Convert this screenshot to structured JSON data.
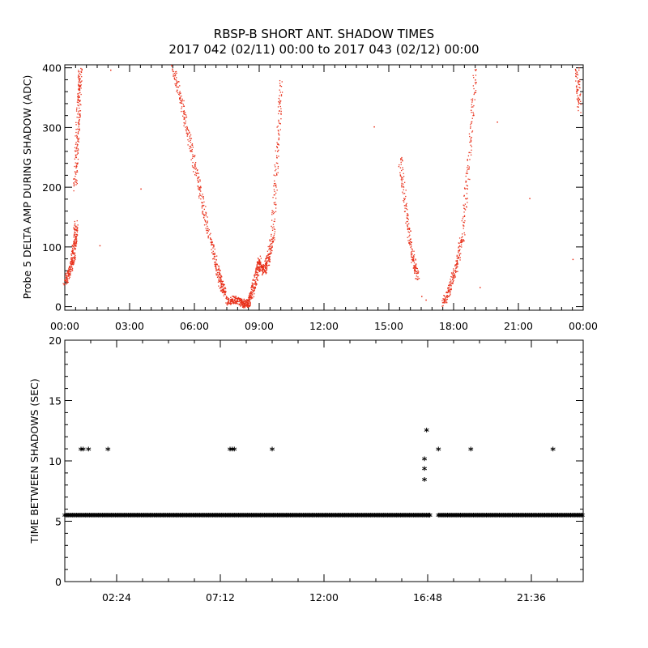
{
  "title_line1": "RBSP-B SHORT ANT. SHADOW TIMES",
  "title_line2": "2017 042 (02/11) 00:00 to 2017 043 (02/12) 00:00",
  "chart_data": [
    {
      "type": "scatter",
      "ylabel": "Probe 5 DELTA AMP DURING SHADOW (ADC)",
      "xlabel": "",
      "x_unit": "hours",
      "xlim": [
        0,
        24
      ],
      "ylim": [
        -6,
        405
      ],
      "xticks": [
        0,
        3,
        6,
        9,
        12,
        15,
        18,
        21,
        24
      ],
      "xtick_labels": [
        "00:00",
        "03:00",
        "06:00",
        "09:00",
        "12:00",
        "15:00",
        "18:00",
        "21:00",
        "00:00"
      ],
      "yticks": [
        0,
        100,
        200,
        300,
        400
      ],
      "ytick_labels": [
        "0",
        "100",
        "200",
        "300",
        "400"
      ],
      "color": "#e8301a",
      "segments": [
        {
          "x": [
            0.0,
            0.2,
            0.35,
            0.45,
            0.5
          ],
          "y": [
            40,
            60,
            80,
            110,
            140
          ]
        },
        {
          "x": [
            0.45,
            0.55,
            0.65,
            0.7
          ],
          "y": [
            200,
            280,
            350,
            400
          ]
        },
        {
          "x": [
            5.0,
            5.4,
            5.8,
            6.2,
            6.6,
            7.0,
            7.2,
            7.4
          ],
          "y": [
            400,
            340,
            270,
            200,
            130,
            70,
            40,
            20
          ]
        },
        {
          "x": [
            7.5,
            7.8,
            8.1,
            8.3,
            8.5,
            8.7,
            8.9,
            9.0
          ],
          "y": [
            10,
            12,
            9,
            5,
            8,
            30,
            60,
            80
          ]
        },
        {
          "x": [
            9.0,
            9.2,
            9.4,
            9.6,
            9.8,
            10.0
          ],
          "y": [
            70,
            60,
            80,
            120,
            250,
            380
          ]
        },
        {
          "x": [
            15.5,
            15.8,
            16.1,
            16.3
          ],
          "y": [
            250,
            150,
            80,
            50
          ]
        },
        {
          "x": [
            17.5,
            17.8,
            18.1,
            18.4,
            18.7,
            19.0
          ],
          "y": [
            5,
            30,
            70,
            120,
            250,
            400
          ]
        },
        {
          "x": [
            23.7,
            23.8
          ],
          "y": [
            400,
            330
          ]
        }
      ],
      "isolated_points": [
        {
          "x": 1.6,
          "y": 103
        },
        {
          "x": 3.5,
          "y": 198
        },
        {
          "x": 2.1,
          "y": 397
        },
        {
          "x": 14.3,
          "y": 302
        },
        {
          "x": 16.5,
          "y": 18
        },
        {
          "x": 16.7,
          "y": 12
        },
        {
          "x": 20.0,
          "y": 310
        },
        {
          "x": 21.5,
          "y": 182
        },
        {
          "x": 19.2,
          "y": 33
        },
        {
          "x": 23.5,
          "y": 80
        }
      ]
    },
    {
      "type": "scatter",
      "ylabel": "TIME BETWEEN SHADOWS (SEC)",
      "xlabel": "",
      "x_unit": "hours",
      "xlim": [
        0,
        24
      ],
      "ylim": [
        0,
        20
      ],
      "xticks": [
        2.4,
        7.2,
        12.0,
        16.8,
        21.6
      ],
      "xtick_labels": [
        "02:24",
        "07:12",
        "12:00",
        "16:48",
        "21:36"
      ],
      "yticks": [
        0,
        5,
        10,
        15,
        20
      ],
      "ytick_labels": [
        "0",
        "5",
        "10",
        "15",
        "20"
      ],
      "color": "#000000",
      "marker": "*",
      "baseline": {
        "y": 5.45,
        "x_ranges": [
          [
            0,
            16.9
          ],
          [
            17.3,
            24
          ]
        ]
      },
      "points": [
        {
          "x": 0.75,
          "y": 10.9
        },
        {
          "x": 0.85,
          "y": 10.9
        },
        {
          "x": 1.1,
          "y": 10.9
        },
        {
          "x": 2.0,
          "y": 10.9
        },
        {
          "x": 7.65,
          "y": 10.9
        },
        {
          "x": 7.75,
          "y": 10.9
        },
        {
          "x": 7.85,
          "y": 10.9
        },
        {
          "x": 9.6,
          "y": 10.9
        },
        {
          "x": 16.65,
          "y": 8.4
        },
        {
          "x": 16.65,
          "y": 9.3
        },
        {
          "x": 16.65,
          "y": 10.1
        },
        {
          "x": 16.75,
          "y": 12.5
        },
        {
          "x": 17.3,
          "y": 10.9
        },
        {
          "x": 18.8,
          "y": 10.9
        },
        {
          "x": 22.6,
          "y": 10.9
        },
        {
          "x": 16.9,
          "y": 5.45
        },
        {
          "x": 16.8,
          "y": 5.45
        }
      ]
    }
  ]
}
